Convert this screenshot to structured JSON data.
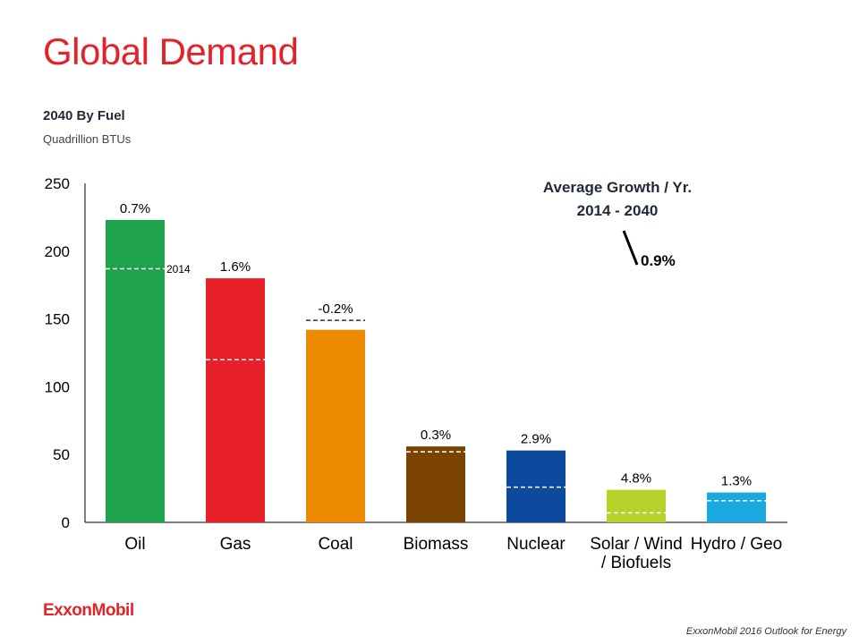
{
  "header": {
    "title": "Global Demand",
    "subtitle": "2040 By Fuel",
    "unit": "Quadrillion BTUs"
  },
  "footer": {
    "logo_text": "ExxonMobil",
    "source": "ExxonMobil 2016 Outlook for Energy"
  },
  "chart_data": {
    "type": "bar",
    "categories": [
      "Oil",
      "Gas",
      "Coal",
      "Biomass",
      "Nuclear",
      "Solar / Wind / Biofuels",
      "Hydro / Geo"
    ],
    "category_lines": [
      [
        "Oil"
      ],
      [
        "Gas"
      ],
      [
        "Coal"
      ],
      [
        "Biomass"
      ],
      [
        "Nuclear"
      ],
      [
        "Solar / Wind",
        "/ Biofuels"
      ],
      [
        "Hydro / Geo"
      ]
    ],
    "values_2040": [
      223,
      180,
      142,
      56,
      53,
      24,
      22
    ],
    "values_2014": [
      187,
      120,
      149,
      52,
      26,
      7,
      16
    ],
    "growth_labels": [
      "0.7%",
      "1.6%",
      "-0.2%",
      "0.3%",
      "2.9%",
      "4.8%",
      "1.3%"
    ],
    "colors": [
      "#1ea34c",
      "#e8202a",
      "#ee8a00",
      "#7a4400",
      "#0d4a9d",
      "#b7d12b",
      "#1aa8e0"
    ],
    "baseline_legend": "2014",
    "ylim": [
      0,
      250
    ],
    "yticks": [
      0,
      50,
      100,
      150,
      200,
      250
    ],
    "grid": false,
    "annotation": {
      "title_line1": "Average Growth / Yr.",
      "title_line2": "2014 - 2040",
      "value": "0.9%"
    }
  }
}
